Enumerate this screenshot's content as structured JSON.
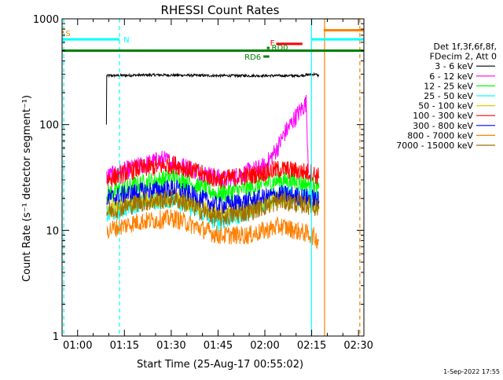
{
  "chart_data": {
    "type": "line",
    "title": "RHESSI Count Rates",
    "xlabel": "Start Time (25-Aug-17 00:55:02)",
    "ylabel": "Count Rate (s⁻¹ detector segment⁻¹)",
    "yscale": "log",
    "ylim": [
      1,
      1000
    ],
    "xlim_minutes": [
      0.0,
      96.7
    ],
    "x_ticks": [
      {
        "label": "01:00",
        "minute": 4.97
      },
      {
        "label": "01:15",
        "minute": 19.97
      },
      {
        "label": "01:30",
        "minute": 34.97
      },
      {
        "label": "01:45",
        "minute": 49.97
      },
      {
        "label": "02:00",
        "minute": 64.97
      },
      {
        "label": "02:15",
        "minute": 79.97
      },
      {
        "label": "02:30",
        "minute": 94.97
      }
    ],
    "y_ticks": [
      {
        "label": "1",
        "value": 1
      },
      {
        "label": "10",
        "value": 10
      },
      {
        "label": "100",
        "value": 100
      },
      {
        "label": "1000",
        "value": 1000
      }
    ],
    "legend": {
      "position": "right",
      "header": [
        "Det 1f,3f,6f,8f,",
        "FDecim 2, Att 0"
      ]
    },
    "series": [
      {
        "name": "3 - 6 keV",
        "color": "#000000",
        "x": [
          14.2,
          14.3,
          30,
          50,
          76,
          81,
          82.3
        ],
        "y": [
          100,
          290,
          295,
          290,
          290,
          300,
          290
        ]
      },
      {
        "name": "6 - 12 keV",
        "color": "#ff00ff",
        "x": [
          14.3,
          22,
          32,
          45,
          52,
          65,
          69,
          71,
          75,
          78.2,
          79
        ],
        "y": [
          32,
          38,
          47,
          35,
          30,
          40,
          60,
          80,
          120,
          160,
          35
        ]
      },
      {
        "name": "12 - 25 keV",
        "color": "#00ff00",
        "x": [
          14.3,
          24,
          36,
          50,
          60,
          70,
          80,
          82.3
        ],
        "y": [
          22,
          27,
          32,
          22,
          25,
          30,
          27,
          25
        ]
      },
      {
        "name": "25 - 50 keV",
        "color": "#00ffff",
        "x": [
          14.3,
          24,
          36,
          50,
          60,
          70,
          80,
          82.3
        ],
        "y": [
          14,
          18,
          20,
          12,
          15,
          22,
          20,
          18
        ]
      },
      {
        "name": "50 - 100 keV",
        "color": "#d4d400",
        "x": [
          14.3,
          24,
          36,
          50,
          60,
          70,
          80,
          82.3
        ],
        "y": [
          16,
          19,
          21,
          14,
          16,
          20,
          18,
          17
        ]
      },
      {
        "name": "100 - 300 keV",
        "color": "#ff0000",
        "x": [
          14.3,
          24,
          36,
          50,
          60,
          70,
          80,
          82.3
        ],
        "y": [
          30,
          38,
          42,
          30,
          33,
          38,
          35,
          32
        ]
      },
      {
        "name": "300 - 800 keV",
        "color": "#0000ff",
        "x": [
          14.3,
          24,
          36,
          50,
          60,
          70,
          80,
          82.3
        ],
        "y": [
          20,
          23,
          25,
          17,
          19,
          22,
          20,
          19
        ]
      },
      {
        "name": "800 - 7000 keV",
        "color": "#ff8000",
        "x": [
          14.3,
          24,
          36,
          50,
          60,
          70,
          80,
          82.3
        ],
        "y": [
          10,
          12,
          13,
          9,
          9,
          11,
          9,
          8
        ]
      },
      {
        "name": "7000 - 15000 keV",
        "color": "#a07000",
        "x": [
          14.3,
          24,
          36,
          50,
          60,
          70,
          80,
          82.3
        ],
        "y": [
          15,
          18,
          20,
          13,
          15,
          19,
          17,
          16
        ]
      }
    ],
    "vertical_lines": [
      {
        "minute": 0.55,
        "color": "#00ffff",
        "style": "dashed"
      },
      {
        "minute": 18.4,
        "color": "#00ffff",
        "style": "dashed"
      },
      {
        "minute": 79.9,
        "color": "#00ffff",
        "style": "solid"
      },
      {
        "minute": 84.1,
        "color": "#ff8000",
        "style": "solid"
      },
      {
        "minute": 95.4,
        "color": "#ff8000",
        "style": "dashed"
      }
    ],
    "flag_bars": [
      {
        "label": "S",
        "color": "#ff8000",
        "x_start": 0.0,
        "x_end": 0.6,
        "value": 750
      },
      {
        "label": "N",
        "color": "#00ffff",
        "x_start": 0.0,
        "x_end": 18.4,
        "value": 640
      },
      {
        "label": "",
        "color": "#00ffff",
        "x_start": 79.9,
        "x_end": 96.7,
        "value": 640
      },
      {
        "label": "",
        "color": "#ff8000",
        "x_start": 83.8,
        "x_end": 96.7,
        "value": 780
      },
      {
        "label": "F",
        "color": "#ff0000",
        "x_start": 68.6,
        "x_end": 77.0,
        "value": 580
      },
      {
        "label": "RD0",
        "color": "#008000",
        "x_start": 65.6,
        "x_end": 66.5,
        "value": 530
      },
      {
        "label": "",
        "color": "#008000",
        "x_start": 0.0,
        "x_end": 96.7,
        "value": 500
      },
      {
        "label": "RD6",
        "color": "#008000",
        "x_start": 64.5,
        "x_end": 66.4,
        "value": 440
      }
    ]
  },
  "footer_timestamp": "1-Sep-2022 17:55"
}
